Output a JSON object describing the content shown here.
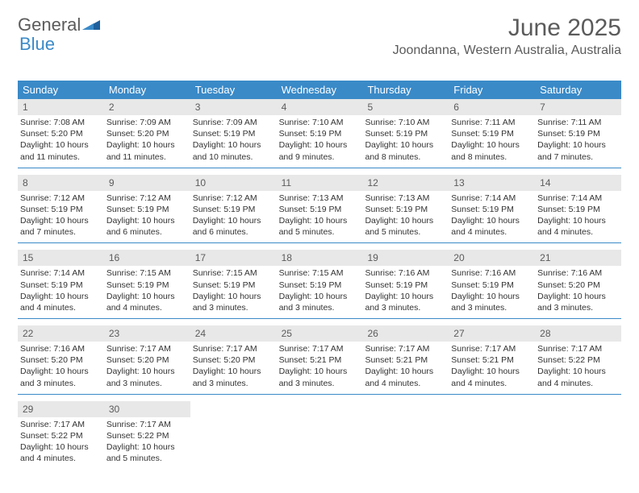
{
  "logo": {
    "text1": "General",
    "text2": "Blue"
  },
  "title": "June 2025",
  "location": "Joondanna, Western Australia, Australia",
  "dayNames": [
    "Sunday",
    "Monday",
    "Tuesday",
    "Wednesday",
    "Thursday",
    "Friday",
    "Saturday"
  ],
  "colors": {
    "header_bg": "#3a8ac8",
    "header_text": "#ffffff",
    "daynum_bg": "#e8e8e8",
    "text_gray": "#5b5b5b",
    "body_text": "#333333",
    "row_border": "#3a8ac8"
  },
  "typography": {
    "title_fontsize": 30,
    "location_fontsize": 16,
    "dayheader_fontsize": 13,
    "daynum_fontsize": 12,
    "body_fontsize": 10.5
  },
  "layout": {
    "columns": 7,
    "rows": 5,
    "cell_padding_bottom": 6
  },
  "weeks": [
    [
      {
        "n": "1",
        "sunrise": "7:08 AM",
        "sunset": "5:20 PM",
        "day": "10 hours and 11 minutes."
      },
      {
        "n": "2",
        "sunrise": "7:09 AM",
        "sunset": "5:20 PM",
        "day": "10 hours and 11 minutes."
      },
      {
        "n": "3",
        "sunrise": "7:09 AM",
        "sunset": "5:19 PM",
        "day": "10 hours and 10 minutes."
      },
      {
        "n": "4",
        "sunrise": "7:10 AM",
        "sunset": "5:19 PM",
        "day": "10 hours and 9 minutes."
      },
      {
        "n": "5",
        "sunrise": "7:10 AM",
        "sunset": "5:19 PM",
        "day": "10 hours and 8 minutes."
      },
      {
        "n": "6",
        "sunrise": "7:11 AM",
        "sunset": "5:19 PM",
        "day": "10 hours and 8 minutes."
      },
      {
        "n": "7",
        "sunrise": "7:11 AM",
        "sunset": "5:19 PM",
        "day": "10 hours and 7 minutes."
      }
    ],
    [
      {
        "n": "8",
        "sunrise": "7:12 AM",
        "sunset": "5:19 PM",
        "day": "10 hours and 7 minutes."
      },
      {
        "n": "9",
        "sunrise": "7:12 AM",
        "sunset": "5:19 PM",
        "day": "10 hours and 6 minutes."
      },
      {
        "n": "10",
        "sunrise": "7:12 AM",
        "sunset": "5:19 PM",
        "day": "10 hours and 6 minutes."
      },
      {
        "n": "11",
        "sunrise": "7:13 AM",
        "sunset": "5:19 PM",
        "day": "10 hours and 5 minutes."
      },
      {
        "n": "12",
        "sunrise": "7:13 AM",
        "sunset": "5:19 PM",
        "day": "10 hours and 5 minutes."
      },
      {
        "n": "13",
        "sunrise": "7:14 AM",
        "sunset": "5:19 PM",
        "day": "10 hours and 4 minutes."
      },
      {
        "n": "14",
        "sunrise": "7:14 AM",
        "sunset": "5:19 PM",
        "day": "10 hours and 4 minutes."
      }
    ],
    [
      {
        "n": "15",
        "sunrise": "7:14 AM",
        "sunset": "5:19 PM",
        "day": "10 hours and 4 minutes."
      },
      {
        "n": "16",
        "sunrise": "7:15 AM",
        "sunset": "5:19 PM",
        "day": "10 hours and 4 minutes."
      },
      {
        "n": "17",
        "sunrise": "7:15 AM",
        "sunset": "5:19 PM",
        "day": "10 hours and 3 minutes."
      },
      {
        "n": "18",
        "sunrise": "7:15 AM",
        "sunset": "5:19 PM",
        "day": "10 hours and 3 minutes."
      },
      {
        "n": "19",
        "sunrise": "7:16 AM",
        "sunset": "5:19 PM",
        "day": "10 hours and 3 minutes."
      },
      {
        "n": "20",
        "sunrise": "7:16 AM",
        "sunset": "5:19 PM",
        "day": "10 hours and 3 minutes."
      },
      {
        "n": "21",
        "sunrise": "7:16 AM",
        "sunset": "5:20 PM",
        "day": "10 hours and 3 minutes."
      }
    ],
    [
      {
        "n": "22",
        "sunrise": "7:16 AM",
        "sunset": "5:20 PM",
        "day": "10 hours and 3 minutes."
      },
      {
        "n": "23",
        "sunrise": "7:17 AM",
        "sunset": "5:20 PM",
        "day": "10 hours and 3 minutes."
      },
      {
        "n": "24",
        "sunrise": "7:17 AM",
        "sunset": "5:20 PM",
        "day": "10 hours and 3 minutes."
      },
      {
        "n": "25",
        "sunrise": "7:17 AM",
        "sunset": "5:21 PM",
        "day": "10 hours and 3 minutes."
      },
      {
        "n": "26",
        "sunrise": "7:17 AM",
        "sunset": "5:21 PM",
        "day": "10 hours and 4 minutes."
      },
      {
        "n": "27",
        "sunrise": "7:17 AM",
        "sunset": "5:21 PM",
        "day": "10 hours and 4 minutes."
      },
      {
        "n": "28",
        "sunrise": "7:17 AM",
        "sunset": "5:22 PM",
        "day": "10 hours and 4 minutes."
      }
    ],
    [
      {
        "n": "29",
        "sunrise": "7:17 AM",
        "sunset": "5:22 PM",
        "day": "10 hours and 4 minutes."
      },
      {
        "n": "30",
        "sunrise": "7:17 AM",
        "sunset": "5:22 PM",
        "day": "10 hours and 5 minutes."
      },
      null,
      null,
      null,
      null,
      null
    ]
  ],
  "labels": {
    "sunrise": "Sunrise:",
    "sunset": "Sunset:",
    "daylight": "Daylight:"
  }
}
